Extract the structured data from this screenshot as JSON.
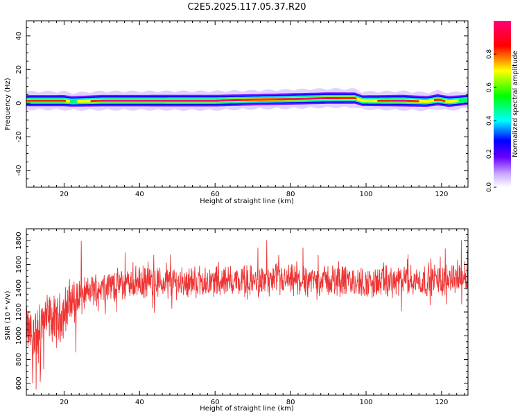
{
  "title": "C2E5.2025.117.05.37.R20",
  "chart_data": [
    {
      "type": "heatmap",
      "xlabel": "Height of straight line (km)",
      "ylabel": "Frequency (Hz)",
      "xlim": [
        10,
        127
      ],
      "ylim": [
        -50,
        49
      ],
      "xticks": [
        20,
        40,
        60,
        80,
        100,
        120
      ],
      "yticks": [
        -40,
        -20,
        0,
        20,
        40
      ],
      "colorbar": {
        "label": "Normalized spectral amplitude",
        "range": [
          0,
          1
        ],
        "ticks": [
          "0.0",
          "0.2",
          "0.4",
          "0.6",
          "0.8"
        ],
        "colors": [
          "#ffffff",
          "#7f00ff",
          "#0000ff",
          "#00ffff",
          "#00ff00",
          "#ffff00",
          "#ff0000",
          "#ff0077"
        ]
      },
      "ridge": {
        "x": [
          10,
          20,
          22,
          30,
          40,
          50,
          60,
          70,
          80,
          90,
          97,
          99,
          110,
          116,
          119,
          122,
          127
        ],
        "center_hz": [
          1.5,
          1.5,
          1.0,
          1.5,
          1.5,
          1.5,
          1.5,
          2.0,
          2.5,
          3.0,
          3.0,
          1.5,
          1.5,
          1.0,
          2.0,
          1.0,
          2.0
        ],
        "peak_amplitude": [
          0.8,
          0.85,
          0.6,
          0.9,
          0.9,
          0.95,
          0.95,
          0.85,
          0.9,
          0.9,
          0.85,
          0.7,
          0.95,
          0.7,
          0.85,
          0.75,
          0.55
        ]
      }
    },
    {
      "type": "line",
      "xlabel": "Height of straight line (km)",
      "ylabel": "SNR (10 * v/v)",
      "xlim": [
        10,
        127
      ],
      "ylim": [
        500,
        1900
      ],
      "xticks": [
        20,
        40,
        60,
        80,
        100,
        120
      ],
      "yticks": [
        600,
        800,
        1000,
        1200,
        1400,
        1600,
        1800
      ],
      "series": [
        {
          "color": "#ee3333",
          "trend_x": [
            10,
            12,
            14,
            16,
            18,
            20,
            22,
            24,
            26,
            28,
            30,
            35,
            40,
            50,
            60,
            70,
            80,
            90,
            100,
            110,
            115,
            118,
            120,
            122,
            124,
            127
          ],
          "trend_y": [
            1050,
            1000,
            1100,
            1150,
            1120,
            1200,
            1300,
            1330,
            1360,
            1390,
            1420,
            1430,
            1450,
            1450,
            1460,
            1460,
            1460,
            1470,
            1440,
            1460,
            1460,
            1480,
            1450,
            1500,
            1490,
            1500
          ]
        }
      ]
    }
  ]
}
